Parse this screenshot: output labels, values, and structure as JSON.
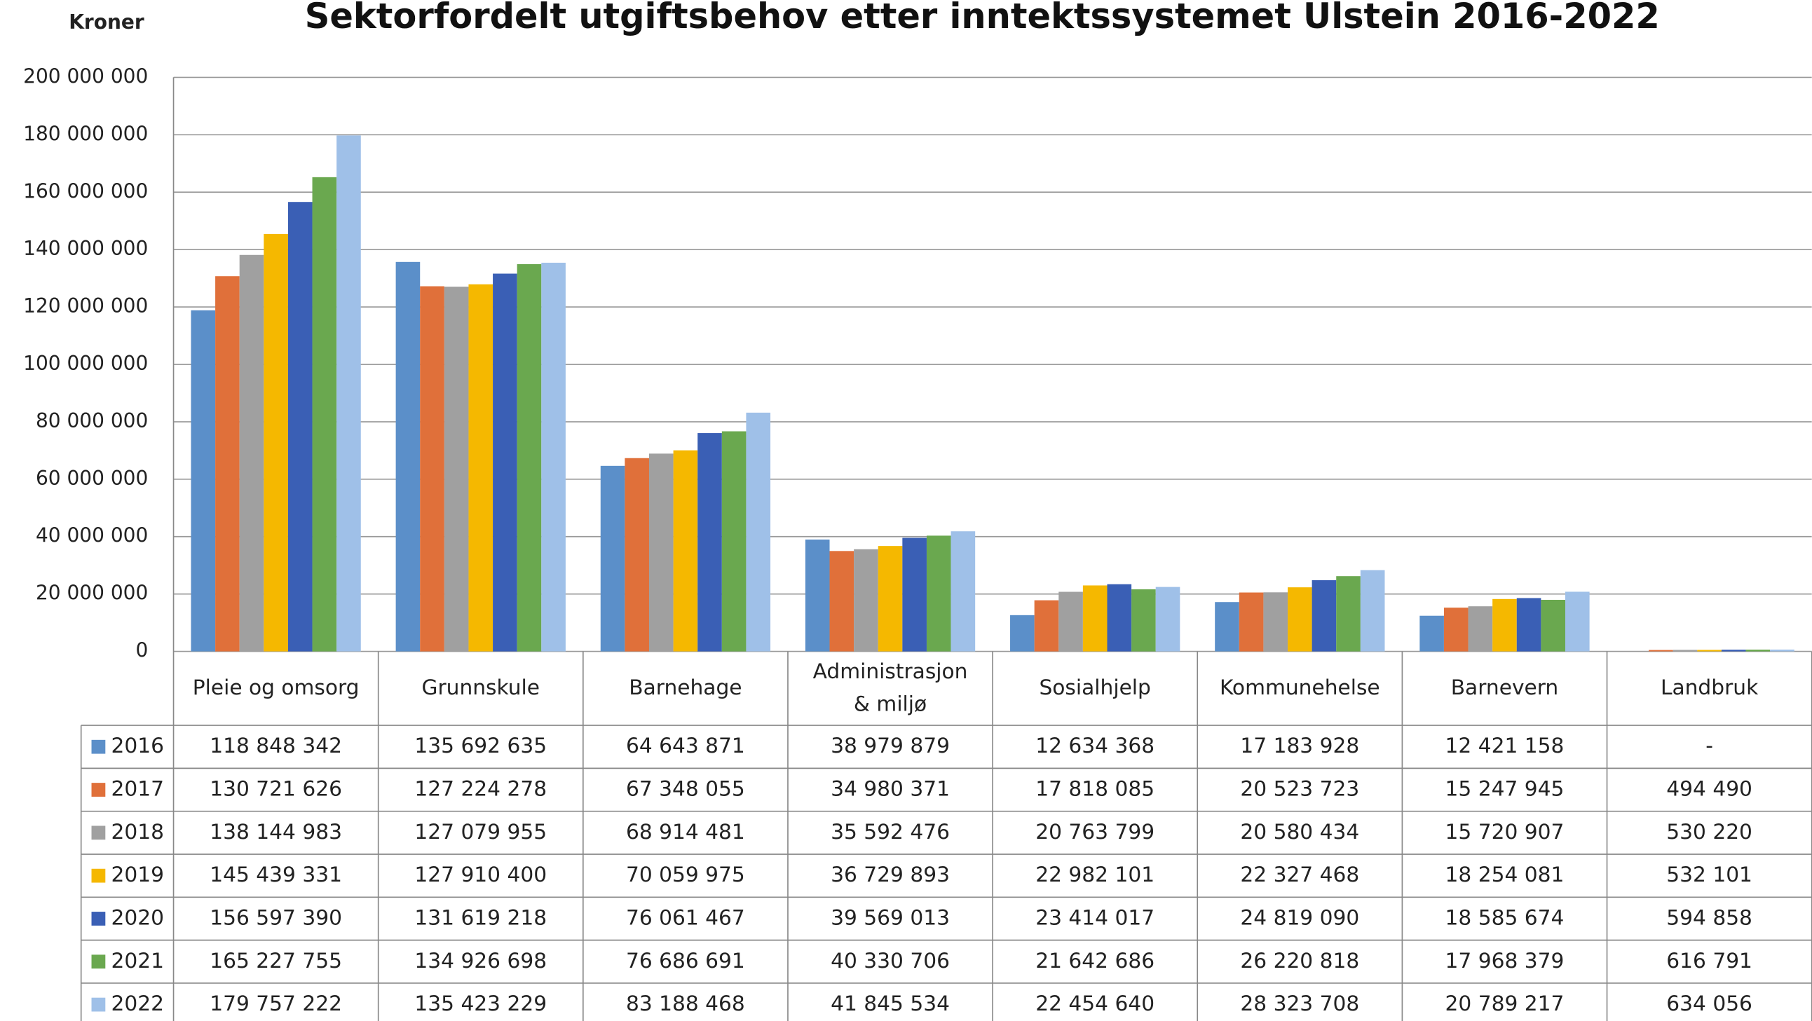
{
  "chart_data": {
    "type": "bar",
    "title": "Sektorfordelt utgiftsbehov etter inntektssystemet Ulstein 2016-2022",
    "y_label": "Kroner",
    "categories": [
      "Pleie og omsorg",
      "Grunnskule",
      "Barnehage",
      "Administrasjon & miljø",
      "Sosialhjelp",
      "Kommunehelse",
      "Barnevern",
      "Landbruk"
    ],
    "ylim": [
      0,
      200000000
    ],
    "yticks": [
      0,
      {
        "value": 20000000,
        "label": "20 000 000"
      },
      {
        "value": 40000000,
        "label": "40 000 000"
      },
      {
        "value": 60000000,
        "label": "60 000 000"
      },
      {
        "value": 80000000,
        "label": "80 000 000"
      },
      {
        "value": 100000000,
        "label": "100 000 000"
      },
      {
        "value": 120000000,
        "label": "120 000 000"
      },
      {
        "value": 140000000,
        "label": "140 000 000"
      },
      {
        "value": 160000000,
        "label": "160 000 000"
      },
      {
        "value": 180000000,
        "label": "180 000 000"
      },
      {
        "value": 200000000,
        "label": "200 000 000"
      }
    ],
    "grid": true,
    "series": [
      {
        "name": "2016",
        "color": "#5b8fc9",
        "values": [
          118848342,
          135692635,
          64643871,
          38979879,
          12634368,
          17183928,
          12421158,
          null
        ],
        "value_labels": [
          "118 848 342",
          "135 692 635",
          "64 643 871",
          "38 979 879",
          "12 634 368",
          "17 183 928",
          "12 421 158",
          "-"
        ]
      },
      {
        "name": "2017",
        "color": "#e0703a",
        "values": [
          130721626,
          127224278,
          67348055,
          34980371,
          17818085,
          20523723,
          15247945,
          494490
        ],
        "value_labels": [
          "130 721 626",
          "127 224 278",
          "67 348 055",
          "34 980 371",
          "17 818 085",
          "20 523 723",
          "15 247 945",
          "494 490"
        ]
      },
      {
        "name": "2018",
        "color": "#a0a0a0",
        "values": [
          138144983,
          127079955,
          68914481,
          35592476,
          20763799,
          20580434,
          15720907,
          530220
        ],
        "value_labels": [
          "138 144 983",
          "127 079 955",
          "68 914 481",
          "35 592 476",
          "20 763 799",
          "20 580 434",
          "15 720 907",
          "530 220"
        ]
      },
      {
        "name": "2019",
        "color": "#f5b800",
        "values": [
          145439331,
          127910400,
          70059975,
          36729893,
          22982101,
          22327468,
          18254081,
          532101
        ],
        "value_labels": [
          "145 439 331",
          "127 910 400",
          "70 059 975",
          "36 729 893",
          "22 982 101",
          "22 327 468",
          "18 254 081",
          "532 101"
        ]
      },
      {
        "name": "2020",
        "color": "#3a5fb5",
        "values": [
          156597390,
          131619218,
          76061467,
          39569013,
          23414017,
          24819090,
          18585674,
          594858
        ],
        "value_labels": [
          "156 597 390",
          "131 619 218",
          "76 061 467",
          "39 569 013",
          "23 414 017",
          "24 819 090",
          "18 585 674",
          "594 858"
        ]
      },
      {
        "name": "2021",
        "color": "#6aa84f",
        "values": [
          165227755,
          134926698,
          76686691,
          40330706,
          21642686,
          26220818,
          17968379,
          616791
        ],
        "value_labels": [
          "165 227 755",
          "134 926 698",
          "76 686 691",
          "40 330 706",
          "21 642 686",
          "26 220 818",
          "17 968 379",
          "616 791"
        ]
      },
      {
        "name": "2022",
        "color": "#9fc0e8",
        "values": [
          179757222,
          135423229,
          83188468,
          41845534,
          22454640,
          28323708,
          20789217,
          634056
        ],
        "value_labels": [
          "179 757 222",
          "135 423 229",
          "83 188 468",
          "41 845 534",
          "22 454 640",
          "28 323 708",
          "20 789 217",
          "634 056"
        ]
      }
    ]
  }
}
